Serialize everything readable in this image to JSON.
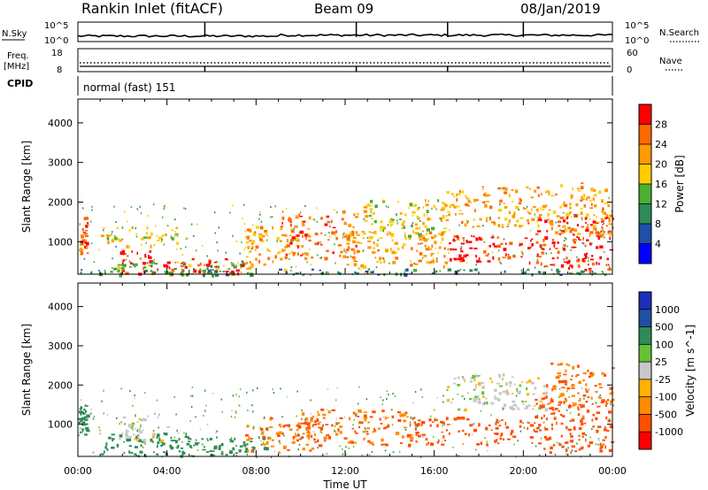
{
  "header": {
    "station": "Rankin Inlet (fitACF)",
    "beam": "Beam 09",
    "date": "08/Jan/2019"
  },
  "nsky_panel": {
    "label": "N.Sky",
    "right_label": "N.Search",
    "left_ticks": [
      "10^5",
      "10^0"
    ],
    "right_ticks": [
      "10^5",
      "10^0"
    ]
  },
  "freq_panel": {
    "label_line1": "Freq.",
    "label_line2": "[MHz]",
    "right_label": "Nave",
    "left_ticks": [
      "18",
      "8"
    ],
    "right_ticks": [
      "60",
      "0"
    ]
  },
  "cpid": {
    "label": "CPID",
    "value": "normal (fast) 151"
  },
  "power_colorbar": {
    "label": "Power [dB]",
    "ticks": [
      "28",
      "24",
      "20",
      "16",
      "12",
      "8",
      "4"
    ],
    "colors": [
      "#ff0000",
      "#ff6a00",
      "#ff9a00",
      "#ffcc00",
      "#c7d800",
      "#4caf30",
      "#2e8b57",
      "#1f4fa8",
      "#0000ff"
    ]
  },
  "velocity_colorbar": {
    "label": "Velocity [m s^-1]",
    "ticks": [
      "1000",
      "500",
      "100",
      "25",
      "-25",
      "-100",
      "-500",
      "-1000"
    ],
    "colors": [
      "#1c2fb8",
      "#2050a0",
      "#2e8b57",
      "#66c233",
      "#c8c8c8",
      "#ffb300",
      "#ff8c00",
      "#ff5000",
      "#ff0000"
    ]
  },
  "chart_data": {
    "type": "heatmap",
    "xlabel": "Time UT",
    "ylabel": "Slant Range [km]",
    "x_ticks": [
      "00:00",
      "04:00",
      "08:00",
      "12:00",
      "16:00",
      "20:00",
      "00:00"
    ],
    "x_range_hours": [
      0,
      24
    ],
    "y_ticks": [
      1000,
      2000,
      3000,
      4000
    ],
    "y_range_km": [
      180,
      4600
    ],
    "nsky_spike_hours": [
      5.7,
      12.5,
      16.6,
      20.0
    ],
    "panels": [
      {
        "quantity": "Power",
        "unit": "dB",
        "regions": [
          {
            "t0": 0.0,
            "t1": 0.4,
            "r0": 700,
            "r1": 1700,
            "value": 24
          },
          {
            "t0": 1.8,
            "t1": 3.5,
            "r0": 200,
            "r1": 800,
            "value": 28
          },
          {
            "t0": 1.0,
            "t1": 8.0,
            "r0": 180,
            "r1": 500,
            "value": 12
          },
          {
            "t0": 3.5,
            "t1": 7.5,
            "r0": 200,
            "r1": 600,
            "value": 28
          },
          {
            "t0": 1.0,
            "t1": 4.5,
            "r0": 900,
            "r1": 1400,
            "value": 16
          },
          {
            "t0": 7.5,
            "t1": 10.0,
            "r0": 300,
            "r1": 1400,
            "value": 20
          },
          {
            "t0": 9.0,
            "t1": 12.5,
            "r0": 600,
            "r1": 1800,
            "value": 24
          },
          {
            "t0": 12.0,
            "t1": 16.5,
            "r0": 400,
            "r1": 1300,
            "value": 20
          },
          {
            "t0": 12.5,
            "t1": 16.5,
            "r0": 1100,
            "r1": 2100,
            "value": 16
          },
          {
            "t0": 16.5,
            "t1": 20.5,
            "r0": 500,
            "r1": 1200,
            "value": 28
          },
          {
            "t0": 16.5,
            "t1": 21.0,
            "r0": 1400,
            "r1": 2400,
            "value": 20
          },
          {
            "t0": 20.5,
            "t1": 24.0,
            "r0": 300,
            "r1": 1700,
            "value": 28
          },
          {
            "t0": 21.0,
            "t1": 24.0,
            "r0": 1200,
            "r1": 2500,
            "value": 20
          },
          {
            "t0": 0.0,
            "t1": 24.0,
            "r0": 180,
            "r1": 330,
            "value": 8
          }
        ]
      },
      {
        "quantity": "Velocity",
        "unit": "m s^-1",
        "regions": [
          {
            "t0": 0.0,
            "t1": 0.4,
            "r0": 700,
            "r1": 1500,
            "value": 100
          },
          {
            "t0": 1.0,
            "t1": 5.0,
            "r0": 200,
            "r1": 800,
            "value": 100
          },
          {
            "t0": 1.8,
            "t1": 4.0,
            "r0": 600,
            "r1": 1300,
            "value": 0
          },
          {
            "t0": 4.0,
            "t1": 8.5,
            "r0": 200,
            "r1": 700,
            "value": 100
          },
          {
            "t0": 7.5,
            "t1": 11.0,
            "r0": 300,
            "r1": 1200,
            "value": -300
          },
          {
            "t0": 10.0,
            "t1": 15.0,
            "r0": 500,
            "r1": 1400,
            "value": -300
          },
          {
            "t0": 15.0,
            "t1": 20.5,
            "r0": 500,
            "r1": 1200,
            "value": -500
          },
          {
            "t0": 16.5,
            "t1": 21.0,
            "r0": 1400,
            "r1": 2300,
            "value": 0
          },
          {
            "t0": 20.5,
            "t1": 24.0,
            "r0": 300,
            "r1": 1700,
            "value": -500
          },
          {
            "t0": 21.0,
            "t1": 24.0,
            "r0": 1500,
            "r1": 2600,
            "value": -300
          }
        ]
      }
    ]
  }
}
